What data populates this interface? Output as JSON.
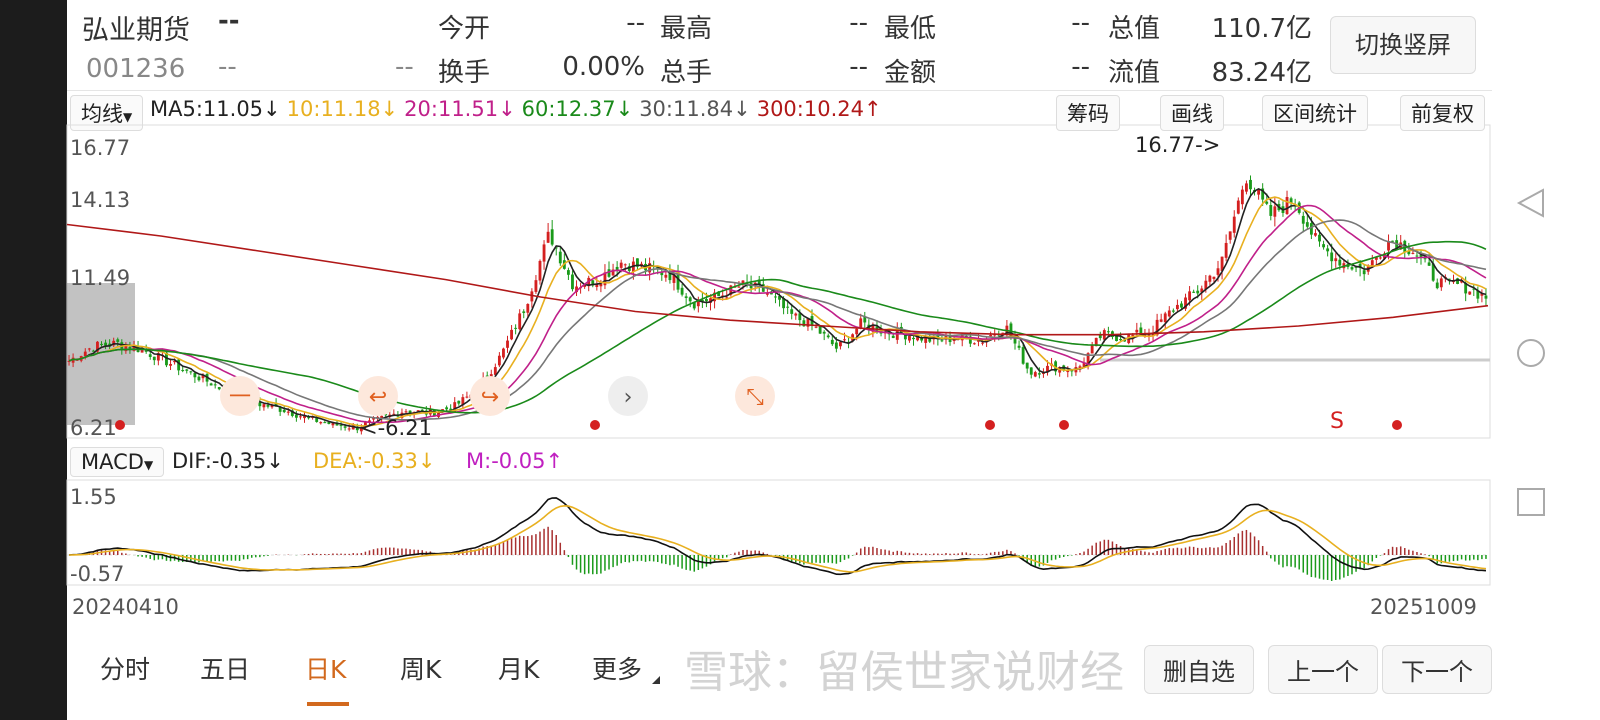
{
  "header": {
    "name": "弘业期货",
    "price": "--",
    "code": "001236",
    "change": "--",
    "change_pct": "--",
    "fields": [
      {
        "label": "今开",
        "value": "--"
      },
      {
        "label": "最高",
        "value": "--"
      },
      {
        "label": "最低",
        "value": "--"
      },
      {
        "label": "总值",
        "value": "110.7亿"
      },
      {
        "label": "换手",
        "value": "0.00%"
      },
      {
        "label": "总手",
        "value": "--"
      },
      {
        "label": "金额",
        "value": "--"
      },
      {
        "label": "流值",
        "value": "83.24亿"
      }
    ],
    "switch_button": "切换竖屏"
  },
  "ma_bar": {
    "selector": "均线",
    "items": [
      {
        "text": "MA5:11.05↓",
        "color": "#222222"
      },
      {
        "text": "10:11.18↓",
        "color": "#e8b020"
      },
      {
        "text": "20:11.51↓",
        "color": "#c0208a"
      },
      {
        "text": "60:12.37↓",
        "color": "#1a8a1a"
      },
      {
        "text": "30:11.84↓",
        "color": "#555555"
      },
      {
        "text": "300:10.24↑",
        "color": "#b01818"
      }
    ],
    "tools": [
      "筹码",
      "画线",
      "区间统计",
      "前复权"
    ]
  },
  "macd_bar": {
    "selector": "MACD",
    "dif": "DIF:-0.35↓",
    "dea": "DEA:-0.33↓",
    "m": "M:-0.05↑"
  },
  "colors": {
    "up": "#d42020",
    "down": "#1a9a1a",
    "accent": "#d2691e"
  },
  "chart_data": {
    "type": "candlestick",
    "y_ticks": [
      "16.77",
      "14.13",
      "11.49",
      "6.21"
    ],
    "macd_ticks": [
      "1.55",
      "-0.57"
    ],
    "x_start": "20240410",
    "x_end": "20251009",
    "max_label": "16.77->",
    "min_label": "<-6.21",
    "closes": [
      8.6,
      9.1,
      9.2,
      9.0,
      8.6,
      8.2,
      7.8,
      7.3,
      7.1,
      6.9,
      6.6,
      6.4,
      6.3,
      6.6,
      6.9,
      6.8,
      7.0,
      7.6,
      8.8,
      10.5,
      13.0,
      11.2,
      11.4,
      12.0,
      11.8,
      11.6,
      10.6,
      10.8,
      11.2,
      11.0,
      10.2,
      9.8,
      9.0,
      9.9,
      9.6,
      9.5,
      9.3,
      9.4,
      9.3,
      9.8,
      8.2,
      8.4,
      8.3,
      9.5,
      9.4,
      9.6,
      10.4,
      11.0,
      12.0,
      15.0,
      13.6,
      14.2,
      12.6,
      12.0,
      11.7,
      12.8,
      12.4,
      11.3,
      11.2,
      10.8
    ],
    "ma300": [
      13.3,
      12.9,
      12.4,
      11.9,
      11.4,
      10.8,
      10.3,
      10.0,
      9.8,
      9.6,
      9.5,
      9.5,
      9.6,
      9.8,
      10.1,
      10.5
    ]
  },
  "markers": {
    "sell": "S",
    "circle_buttons": [
      "一",
      "↩",
      "↪",
      "›",
      "⤡"
    ]
  },
  "tabs": [
    "分时",
    "五日",
    "日K",
    "周K",
    "月K",
    "更多"
  ],
  "active_tab": "日K",
  "bottom_buttons": [
    "删自选",
    "上一个",
    "下一个"
  ],
  "watermark": "雪球：留侯世家说财经"
}
